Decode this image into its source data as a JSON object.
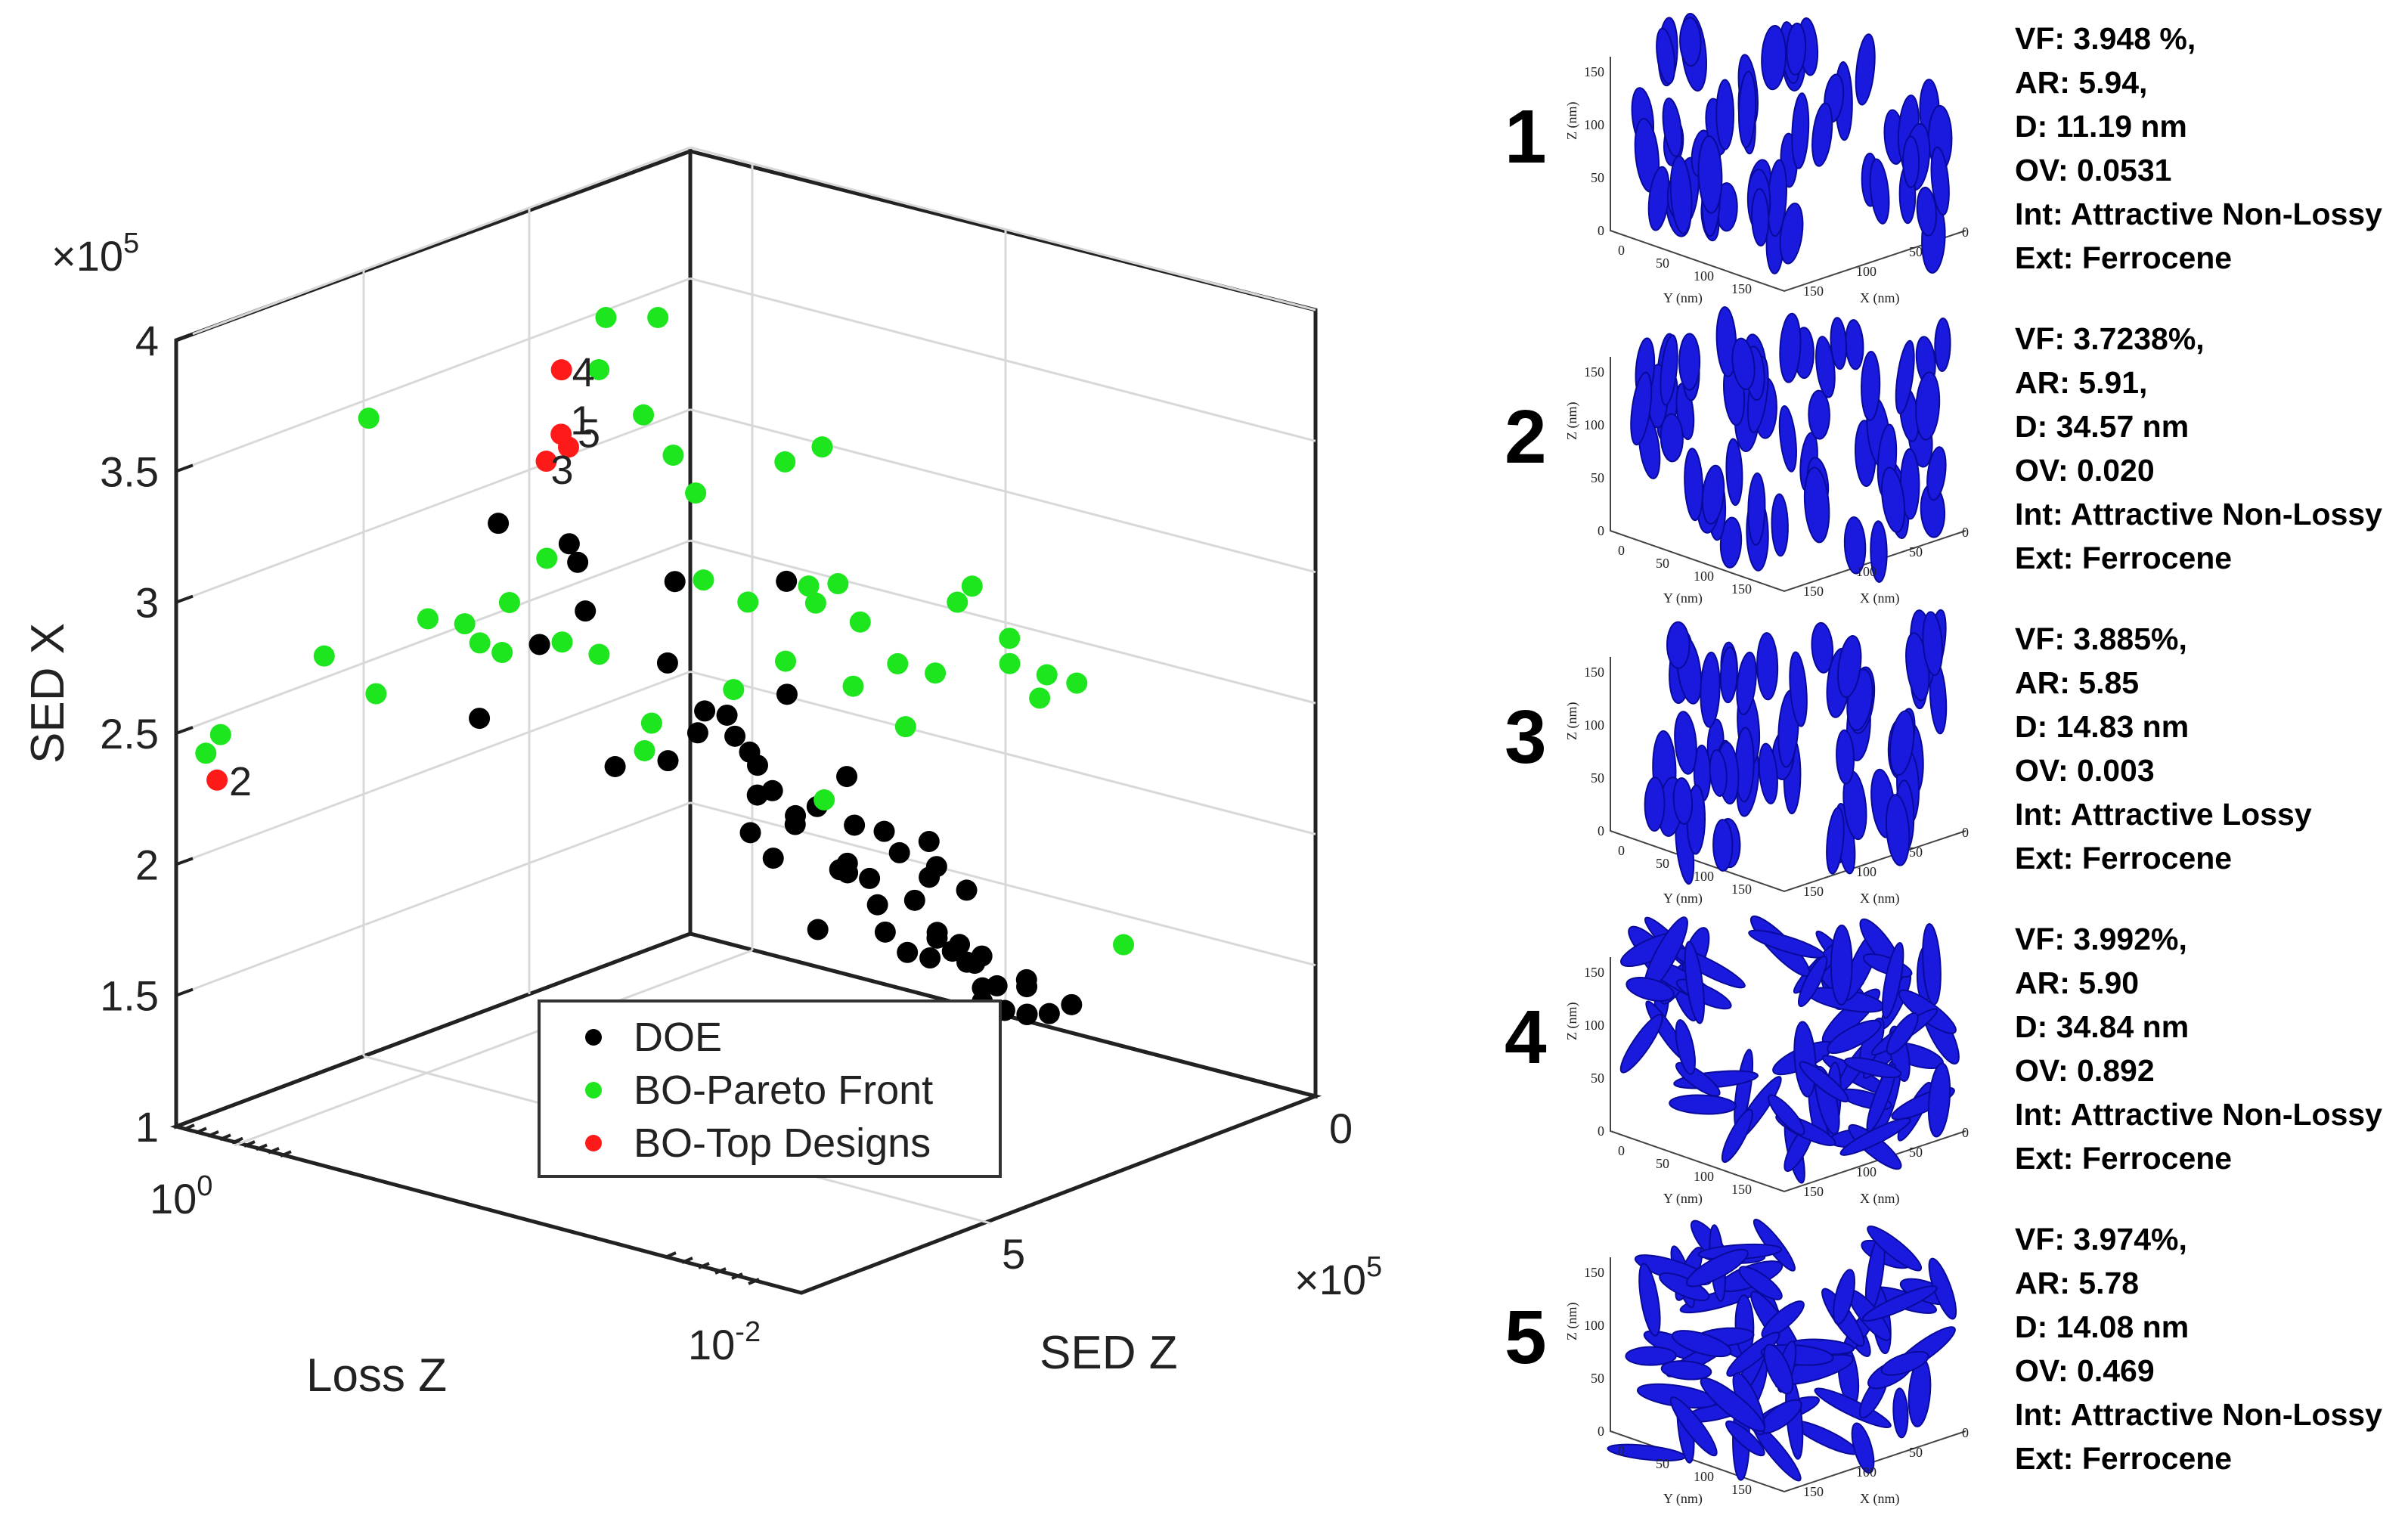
{
  "chart_data": {
    "type": "scatter",
    "subtype": "scatter3d",
    "x_multiplier": "×10",
    "x_multiplier_exp": "5",
    "z_multiplier": "×10",
    "z_multiplier_exp": "5",
    "xlabel": "Loss Z",
    "ylabel": "SED Z",
    "zlabel": "SED X",
    "z_ticks": [
      "1",
      "1.5",
      "2",
      "2.5",
      "3",
      "3.5",
      "4"
    ],
    "loss_ticks": [
      {
        "base": "10",
        "exp": "0"
      },
      {
        "base": "10",
        "exp": "-2"
      }
    ],
    "sed_z_ticks": [
      "0",
      "5"
    ],
    "legend": [
      "DOE",
      "BO-Pareto Front",
      "BO-Top Designs"
    ],
    "legend_position": "bottom-center",
    "colors": {
      "DOE": "#000000",
      "Pareto": "#1ee61e",
      "Top": "#ff1a1a"
    },
    "series": [
      {
        "name": "DOE",
        "points": [
          [
            3.9,
            0.2,
            2.16
          ],
          [
            3.8,
            1.1,
            2.52
          ],
          [
            3.75,
            0.6,
            2.95
          ],
          [
            4.1,
            1.2,
            2.88
          ],
          [
            3.2,
            2.2,
            2.98
          ],
          [
            3.3,
            2.6,
            2.22
          ],
          [
            3.1,
            2.4,
            2.82
          ],
          [
            3.5,
            3.2,
            2.95
          ],
          [
            3.7,
            3.4,
            2.45
          ],
          [
            3.0,
            3.6,
            2.35
          ],
          [
            3.4,
            3.2,
            2.65
          ],
          [
            3.9,
            3.5,
            2.42
          ],
          [
            3.2,
            3.8,
            2.45
          ],
          [
            3.8,
            3.9,
            2.32
          ],
          [
            4.4,
            3.8,
            2.9
          ],
          [
            3.6,
            4.2,
            2.2
          ],
          [
            3.4,
            4.4,
            2.35
          ],
          [
            3.9,
            4.3,
            2.56
          ],
          [
            3.5,
            4.5,
            2.25
          ],
          [
            3.1,
            4.6,
            2.14
          ],
          [
            3.8,
            4.8,
            2.18
          ],
          [
            4.1,
            4.9,
            2.27
          ],
          [
            4.0,
            5.1,
            2.11
          ],
          [
            3.7,
            5.2,
            1.98
          ],
          [
            3.6,
            5.4,
            2.03
          ],
          [
            4.2,
            5.3,
            2.08
          ],
          [
            3.4,
            5.6,
            2.03
          ],
          [
            3.9,
            5.4,
            1.94
          ],
          [
            3.5,
            5.9,
            1.92
          ],
          [
            4.0,
            5.7,
            2.05
          ],
          [
            3.2,
            5.4,
            1.82
          ],
          [
            3.8,
            6.1,
            1.92
          ],
          [
            4.2,
            5.9,
            1.95
          ],
          [
            3.6,
            6.2,
            1.75
          ],
          [
            3.9,
            6.3,
            1.78
          ],
          [
            4.0,
            6.5,
            1.76
          ],
          [
            3.6,
            6.8,
            1.8
          ],
          [
            4.0,
            6.6,
            1.7
          ],
          [
            3.8,
            6.9,
            1.74
          ],
          [
            4.1,
            6.7,
            1.72
          ],
          [
            3.7,
            7.1,
            1.62
          ],
          [
            4.0,
            7.0,
            1.64
          ],
          [
            3.8,
            7.3,
            1.59
          ],
          [
            4.2,
            7.2,
            1.63
          ],
          [
            4.4,
            7.0,
            1.62
          ],
          [
            3.6,
            7.2,
            1.69
          ],
          [
            4.0,
            7.4,
            1.56
          ],
          [
            3.9,
            7.5,
            1.58
          ],
          [
            4.2,
            7.5,
            1.55
          ],
          [
            4.4,
            7.6,
            1.57
          ],
          [
            3.5,
            6.6,
            1.77
          ],
          [
            3.3,
            6.2,
            1.86
          ],
          [
            4.3,
            6.3,
            1.92
          ],
          [
            4.4,
            5.7,
            2.05
          ],
          [
            3.3,
            5.0,
            2.18
          ],
          [
            3.1,
            5.2,
            2.25
          ],
          [
            3.5,
            4.0,
            2.42
          ],
          [
            2.8,
            5.2,
            2.12
          ],
          [
            4.3,
            5.9,
            1.98
          ],
          [
            3.8,
            6.4,
            1.82
          ]
        ]
      },
      {
        "name": "BO-Pareto Front",
        "points": [
          [
            0.5,
            0.1,
            2.45
          ],
          [
            0.3,
            0.1,
            2.4
          ],
          [
            1.8,
            0.2,
            2.62
          ],
          [
            2.4,
            0.3,
            2.42
          ],
          [
            3.0,
            0.4,
            2.65
          ],
          [
            2.2,
            0.4,
            3.5
          ],
          [
            3.6,
            0.3,
            2.56
          ],
          [
            3.5,
            0.6,
            2.52
          ],
          [
            3.7,
            0.7,
            2.47
          ],
          [
            3.8,
            0.7,
            2.65
          ],
          [
            4.2,
            1.5,
            2.47
          ],
          [
            4.0,
            1.0,
            2.82
          ],
          [
            3.7,
            1.5,
            2.57
          ],
          [
            4.8,
            1.0,
            3.8
          ],
          [
            5.3,
            1.2,
            3.78
          ],
          [
            4.4,
            1.3,
            3.52
          ],
          [
            4.8,
            1.5,
            3.32
          ],
          [
            5.0,
            1.7,
            3.16
          ],
          [
            5.1,
            1.9,
            3.02
          ],
          [
            4.8,
            2.3,
            2.75
          ],
          [
            5.3,
            2.4,
            2.62
          ],
          [
            4.7,
            2.8,
            2.38
          ],
          [
            4.2,
            2.2,
            2.26
          ],
          [
            3.8,
            2.5,
            2.22
          ],
          [
            5.2,
            3.0,
            2.45
          ],
          [
            5.7,
            2.5,
            3.12
          ],
          [
            6.0,
            2.7,
            3.16
          ],
          [
            4.7,
            3.8,
            2.85
          ],
          [
            5.3,
            3.6,
            2.78
          ],
          [
            5.5,
            3.7,
            2.62
          ],
          [
            5.1,
            4.0,
            2.44
          ],
          [
            5.6,
            4.1,
            2.48
          ],
          [
            5.2,
            4.6,
            2.32
          ],
          [
            5.5,
            4.7,
            2.5
          ],
          [
            5.9,
            4.6,
            2.72
          ],
          [
            6.1,
            4.6,
            2.76
          ],
          [
            6.2,
            5.0,
            2.58
          ],
          [
            6.0,
            5.2,
            2.52
          ],
          [
            6.1,
            5.5,
            2.4
          ],
          [
            6.3,
            5.4,
            2.46
          ],
          [
            4.2,
            4.5,
            2.14
          ],
          [
            5.1,
            3.5,
            2.72
          ],
          [
            6.4,
            5.7,
            2.44
          ],
          [
            4.9,
            7.8,
            1.76
          ]
        ]
      },
      {
        "name": "BO-Top Designs",
        "points": [
          [
            0.35,
            0.2,
            2.3
          ],
          [
            4.5,
            0.5,
            3.1
          ],
          [
            4.3,
            0.9,
            3.5
          ],
          [
            4.6,
            0.6,
            3.2
          ],
          [
            4.7,
            0.6,
            3.14
          ]
        ]
      }
    ],
    "top_design_labels": [
      "2",
      "3",
      "4",
      "1",
      "5"
    ]
  },
  "panels": [
    {
      "number": "1",
      "vf": "VF: 3.948 %,",
      "ar": "AR: 5.94,",
      "d": "D: 11.19 nm",
      "ov": "OV: 0.0531",
      "int": "Int: Attractive Non-Lossy",
      "ext": "Ext: Ferrocene",
      "style": "vertical"
    },
    {
      "number": "2",
      "vf": "VF: 3.7238%,",
      "ar": "AR: 5.91,",
      "d": "D: 34.57 nm",
      "ov": "OV: 0.020",
      "int": "Int: Attractive Non-Lossy",
      "ext": "Ext: Ferrocene",
      "style": "vertical"
    },
    {
      "number": "3",
      "vf": "VF: 3.885%,",
      "ar": "AR: 5.85",
      "d": "D: 14.83 nm",
      "ov": "OV: 0.003",
      "int": "Int: Attractive Lossy",
      "ext": "Ext: Ferrocene",
      "style": "vertical"
    },
    {
      "number": "4",
      "vf": "VF: 3.992%,",
      "ar": "AR: 5.90",
      "d": "D: 34.84 nm",
      "ov": "OV: 0.892",
      "int": "Int: Attractive Non-Lossy",
      "ext": "Ext: Ferrocene",
      "style": "random"
    },
    {
      "number": "5",
      "vf": "VF: 3.974%,",
      "ar": "AR: 5.78",
      "d": "D: 14.08 nm",
      "ov": "OV: 0.469",
      "int": "Int: Attractive Non-Lossy",
      "ext": "Ext: Ferrocene",
      "style": "random"
    }
  ],
  "micro_axes": {
    "z_label": "Z (nm)",
    "y_label": "Y (nm)",
    "x_label": "X (nm)",
    "ticks_z": [
      "0",
      "50",
      "100",
      "150"
    ],
    "ticks_y": [
      "0",
      "50",
      "100",
      "150"
    ],
    "ticks_x": [
      "150",
      "100",
      "50",
      "0"
    ]
  }
}
